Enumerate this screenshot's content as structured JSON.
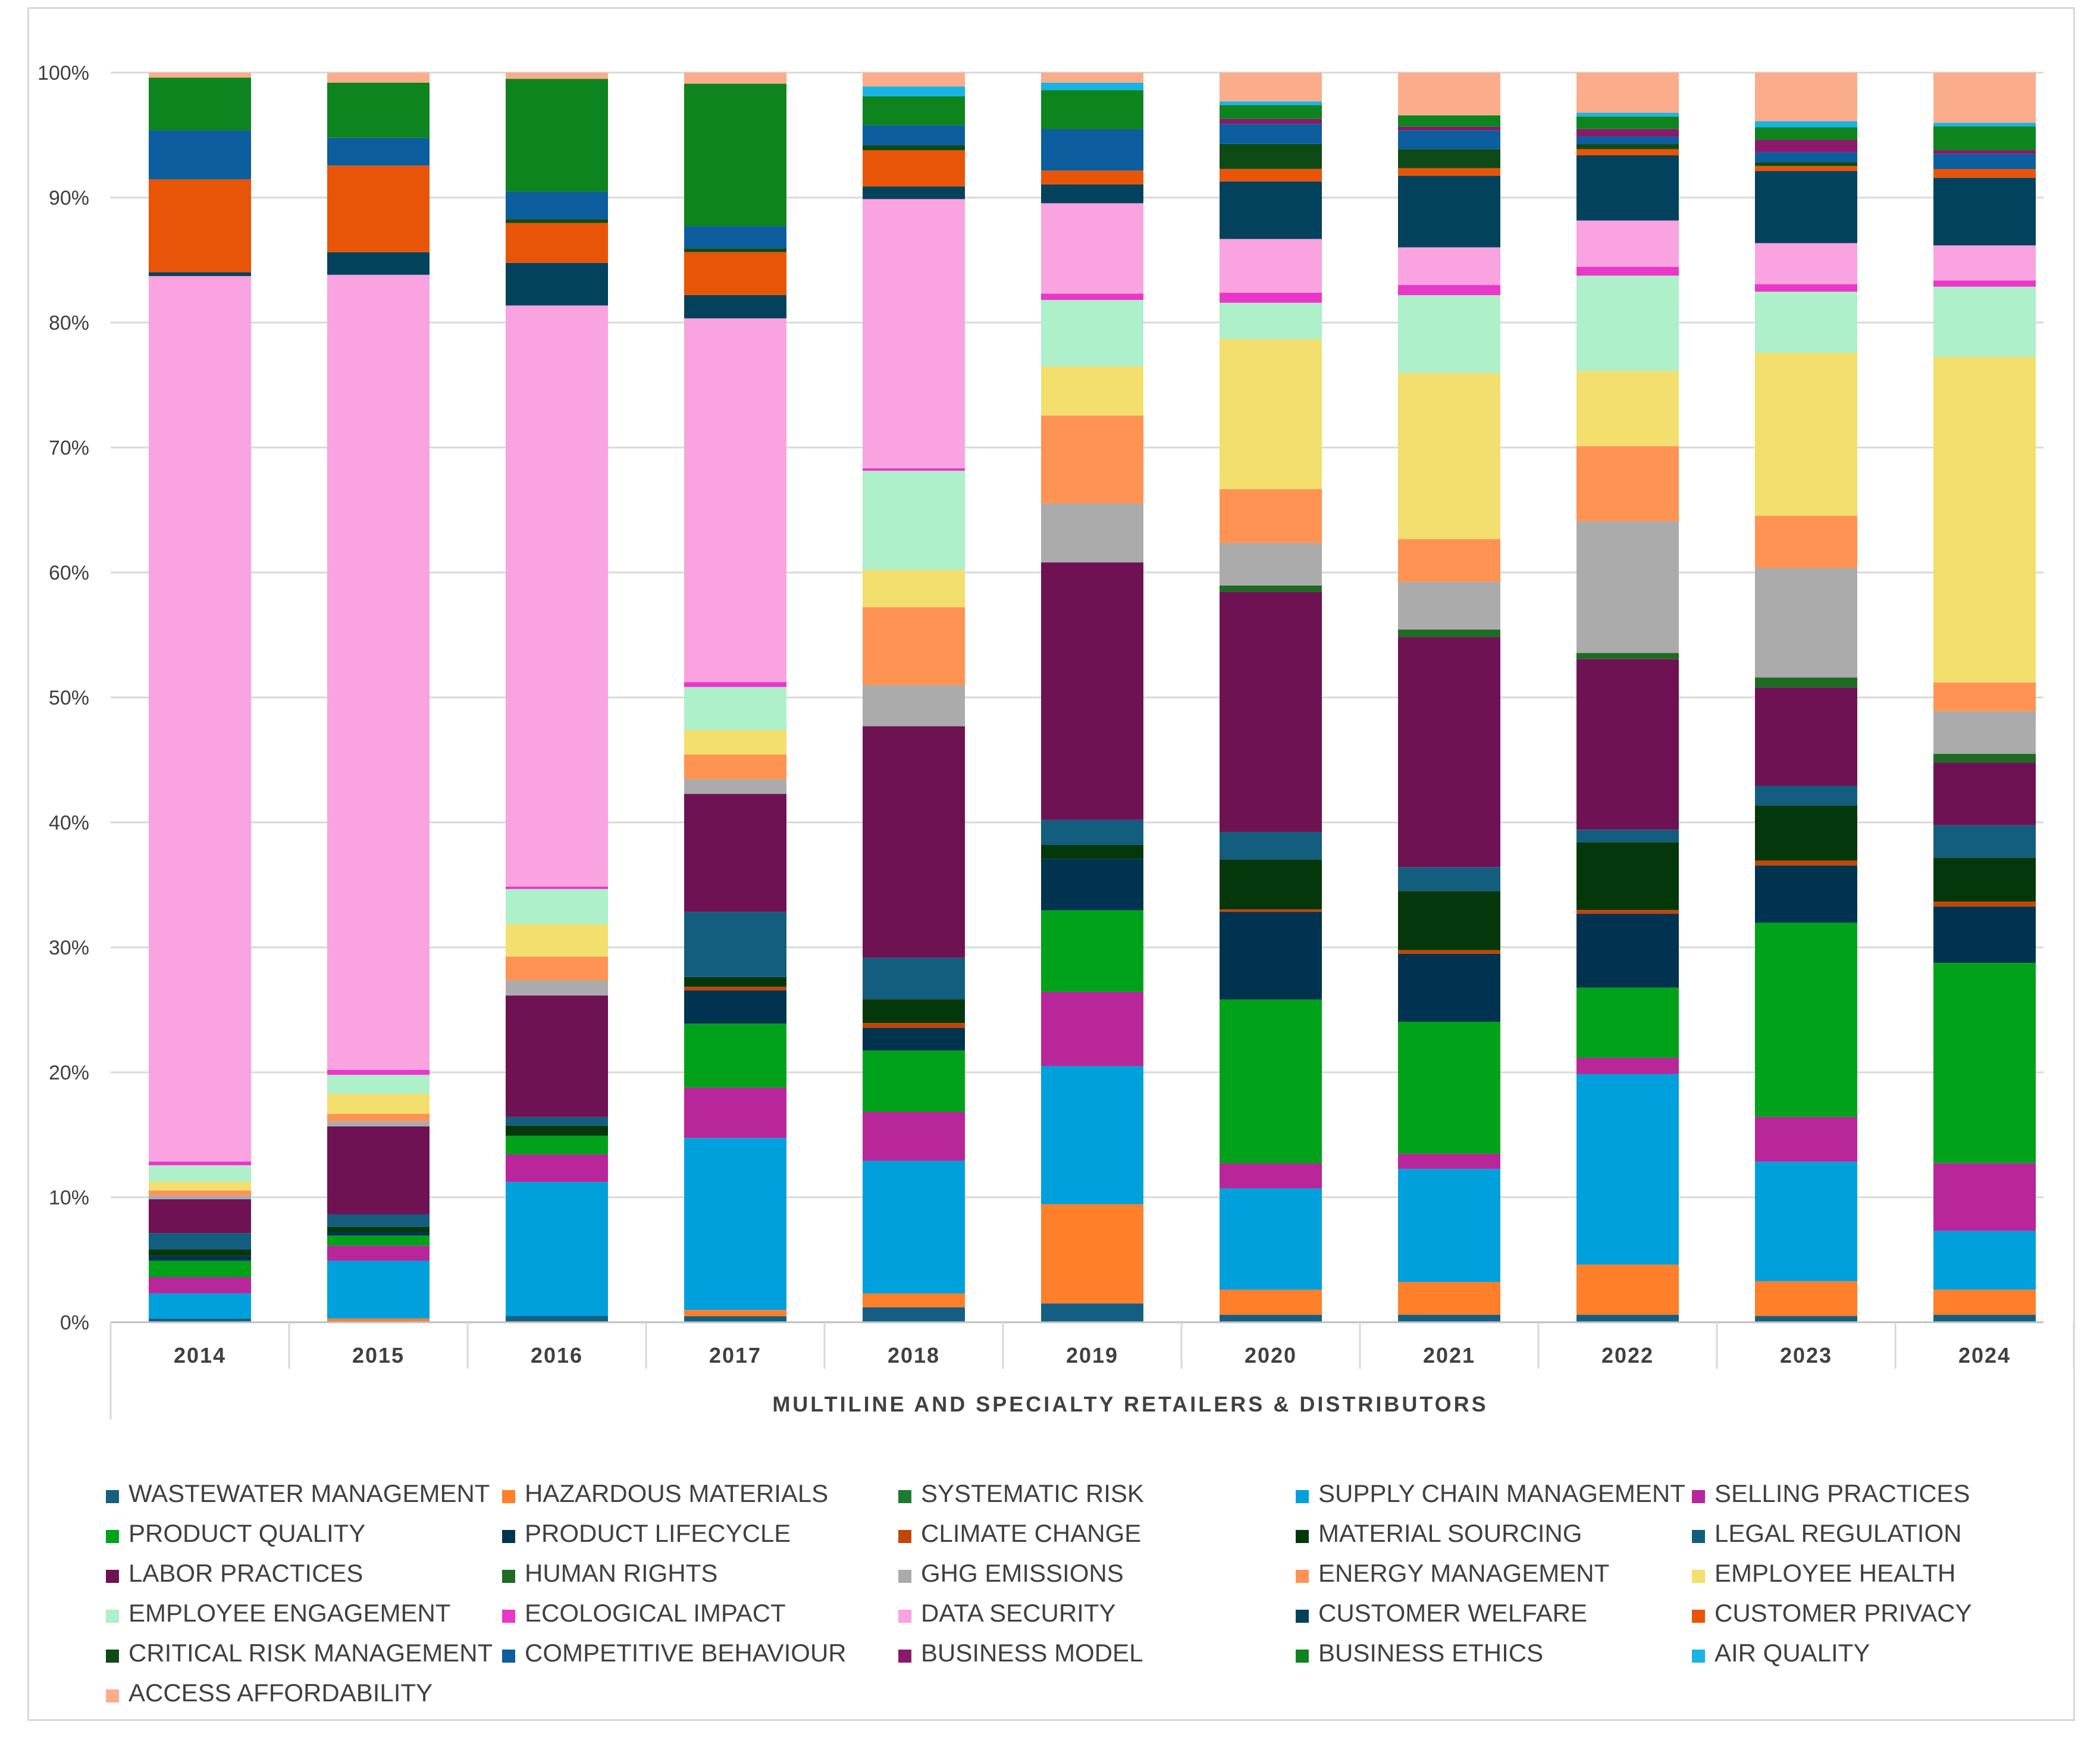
{
  "chart_data": {
    "type": "bar",
    "stacked": true,
    "normalized": true,
    "title": "",
    "xlabel": "MULTILINE AND SPECIALTY RETAILERS & DISTRIBUTORS",
    "ylabel": "",
    "ylim": [
      0,
      100
    ],
    "yticks": [
      "0%",
      "10%",
      "20%",
      "30%",
      "40%",
      "50%",
      "60%",
      "70%",
      "80%",
      "90%",
      "100%"
    ],
    "categories": [
      "2014",
      "2015",
      "2016",
      "2017",
      "2018",
      "2019",
      "2020",
      "2021",
      "2022",
      "2023",
      "2024"
    ],
    "legend_position": "bottom",
    "series": [
      {
        "name": "WASTEWATER MANAGEMENT",
        "color": "#156082",
        "values": [
          0.3,
          0.0,
          0.5,
          0.5,
          1.2,
          1.5,
          0.6,
          0.6,
          0.6,
          0.5,
          0.6
        ]
      },
      {
        "name": "HAZARDOUS MATERIALS",
        "color": "#FF7F2A",
        "values": [
          0.0,
          0.3,
          0.0,
          0.5,
          1.1,
          7.9,
          2.0,
          2.6,
          4.0,
          2.8,
          2.0
        ]
      },
      {
        "name": "SYSTEMATIC RISK",
        "color": "#1E7A2E",
        "values": [
          0.0,
          0.0,
          0.0,
          0.0,
          0.0,
          0.0,
          0.0,
          0.0,
          0.0,
          0.0,
          0.0
        ]
      },
      {
        "name": "SUPPLY CHAIN MANAGEMENT",
        "color": "#00A0DC",
        "values": [
          2.0,
          4.6,
          10.7,
          14.0,
          10.6,
          11.0,
          8.1,
          9.0,
          15.2,
          9.6,
          4.7
        ]
      },
      {
        "name": "SELLING PRACTICES",
        "color": "#B9269A",
        "values": [
          1.3,
          1.2,
          2.2,
          4.1,
          3.9,
          5.9,
          2.0,
          1.2,
          1.3,
          3.6,
          5.4
        ]
      },
      {
        "name": "PRODUCT QUALITY",
        "color": "#00A21A",
        "values": [
          1.3,
          0.8,
          1.5,
          5.2,
          4.9,
          6.5,
          13.1,
          10.5,
          5.6,
          15.6,
          16.0
        ]
      },
      {
        "name": "PRODUCT LIFECYCLE",
        "color": "#003350",
        "values": [
          0.4,
          0.3,
          0.0,
          2.7,
          1.8,
          4.1,
          7.0,
          5.4,
          5.9,
          4.6,
          4.5
        ]
      },
      {
        "name": "CLIMATE CHANGE",
        "color": "#C0470A",
        "values": [
          0.0,
          0.0,
          0.0,
          0.3,
          0.4,
          0.0,
          0.2,
          0.3,
          0.3,
          0.4,
          0.4
        ]
      },
      {
        "name": "MATERIAL SOURCING",
        "color": "#04380A",
        "values": [
          0.5,
          0.4,
          0.8,
          0.8,
          1.9,
          1.1,
          4.0,
          4.7,
          5.4,
          4.4,
          3.5
        ]
      },
      {
        "name": "LEGAL REGULATION",
        "color": "#135E7E",
        "values": [
          1.3,
          1.0,
          0.7,
          5.3,
          3.3,
          2.0,
          2.2,
          1.9,
          1.0,
          1.6,
          2.6
        ]
      },
      {
        "name": "LABOR PRACTICES",
        "color": "#6F1254",
        "values": [
          2.7,
          7.0,
          9.7,
          9.6,
          18.5,
          20.5,
          19.2,
          18.3,
          13.6,
          7.9,
          5.0
        ]
      },
      {
        "name": "HUMAN RIGHTS",
        "color": "#1E6B23",
        "values": [
          0.0,
          0.0,
          0.0,
          0.0,
          0.0,
          0.0,
          0.5,
          0.6,
          0.5,
          0.8,
          0.7
        ]
      },
      {
        "name": "GHG EMISSIONS",
        "color": "#ABABAB",
        "values": [
          0.3,
          0.4,
          1.2,
          1.2,
          3.3,
          4.7,
          3.4,
          3.8,
          10.5,
          8.8,
          3.4
        ]
      },
      {
        "name": "ENERGY MANAGEMENT",
        "color": "#FF9354",
        "values": [
          0.4,
          0.6,
          1.9,
          2.0,
          6.2,
          7.0,
          4.3,
          3.4,
          6.0,
          4.2,
          2.3
        ]
      },
      {
        "name": "EMPLOYEE HEALTH",
        "color": "#F2DF6E",
        "values": [
          0.7,
          1.6,
          2.6,
          2.0,
          3.0,
          3.9,
          12.0,
          13.2,
          6.0,
          13.1,
          26.0
        ]
      },
      {
        "name": "EMPLOYEE ENGAGEMENT",
        "color": "#ADF0C9",
        "values": [
          1.3,
          1.5,
          2.8,
          3.5,
          7.9,
          5.3,
          2.9,
          6.2,
          7.6,
          4.9,
          5.6
        ]
      },
      {
        "name": "ECOLOGICAL IMPACT",
        "color": "#EA37C9",
        "values": [
          0.3,
          0.4,
          0.2,
          0.4,
          0.2,
          0.5,
          0.8,
          0.8,
          0.7,
          0.6,
          0.5
        ]
      },
      {
        "name": "DATA SECURITY",
        "color": "#F9A3E0",
        "values": [
          70.5,
          63.3,
          46.4,
          29.6,
          21.5,
          7.2,
          4.3,
          3.0,
          3.7,
          3.3,
          2.8
        ]
      },
      {
        "name": "CUSTOMER WELFARE",
        "color": "#02425D",
        "values": [
          0.3,
          1.8,
          3.4,
          1.9,
          1.0,
          1.5,
          4.6,
          5.7,
          5.2,
          5.8,
          5.4
        ]
      },
      {
        "name": "CUSTOMER PRIVACY",
        "color": "#E85508",
        "values": [
          7.4,
          6.9,
          3.2,
          3.5,
          2.9,
          1.1,
          1.0,
          0.6,
          0.5,
          0.4,
          0.7
        ]
      },
      {
        "name": "CRITICAL RISK MANAGEMENT",
        "color": "#0E4A15",
        "values": [
          0.0,
          0.0,
          0.3,
          0.3,
          0.4,
          0.0,
          2.0,
          1.5,
          0.4,
          0.3,
          0.0
        ]
      },
      {
        "name": "COMPETITIVE BEHAVIOUR",
        "color": "#0C5E9E",
        "values": [
          3.9,
          2.2,
          2.2,
          1.8,
          1.6,
          3.3,
          1.6,
          1.5,
          0.6,
          0.8,
          1.2
        ]
      },
      {
        "name": "BUSINESS MODEL",
        "color": "#8A1A6A",
        "values": [
          0.0,
          0.0,
          0.0,
          0.0,
          0.0,
          0.0,
          0.4,
          0.3,
          0.6,
          1.0,
          0.3
        ]
      },
      {
        "name": "BUSINESS ETHICS",
        "color": "#0E841E",
        "values": [
          4.2,
          4.4,
          9.0,
          11.6,
          2.3,
          3.1,
          1.1,
          0.9,
          1.0,
          1.0,
          1.9
        ]
      },
      {
        "name": "AIR QUALITY",
        "color": "#19B4E3",
        "values": [
          0.0,
          0.0,
          0.0,
          0.0,
          0.8,
          0.6,
          0.3,
          0.0,
          0.3,
          0.5,
          0.3
        ]
      },
      {
        "name": "ACCESS AFFORDABILITY",
        "color": "#FBAD8B",
        "values": [
          0.4,
          0.8,
          0.5,
          0.9,
          1.1,
          0.8,
          2.3,
          3.4,
          3.2,
          3.9,
          4.0
        ]
      }
    ]
  }
}
